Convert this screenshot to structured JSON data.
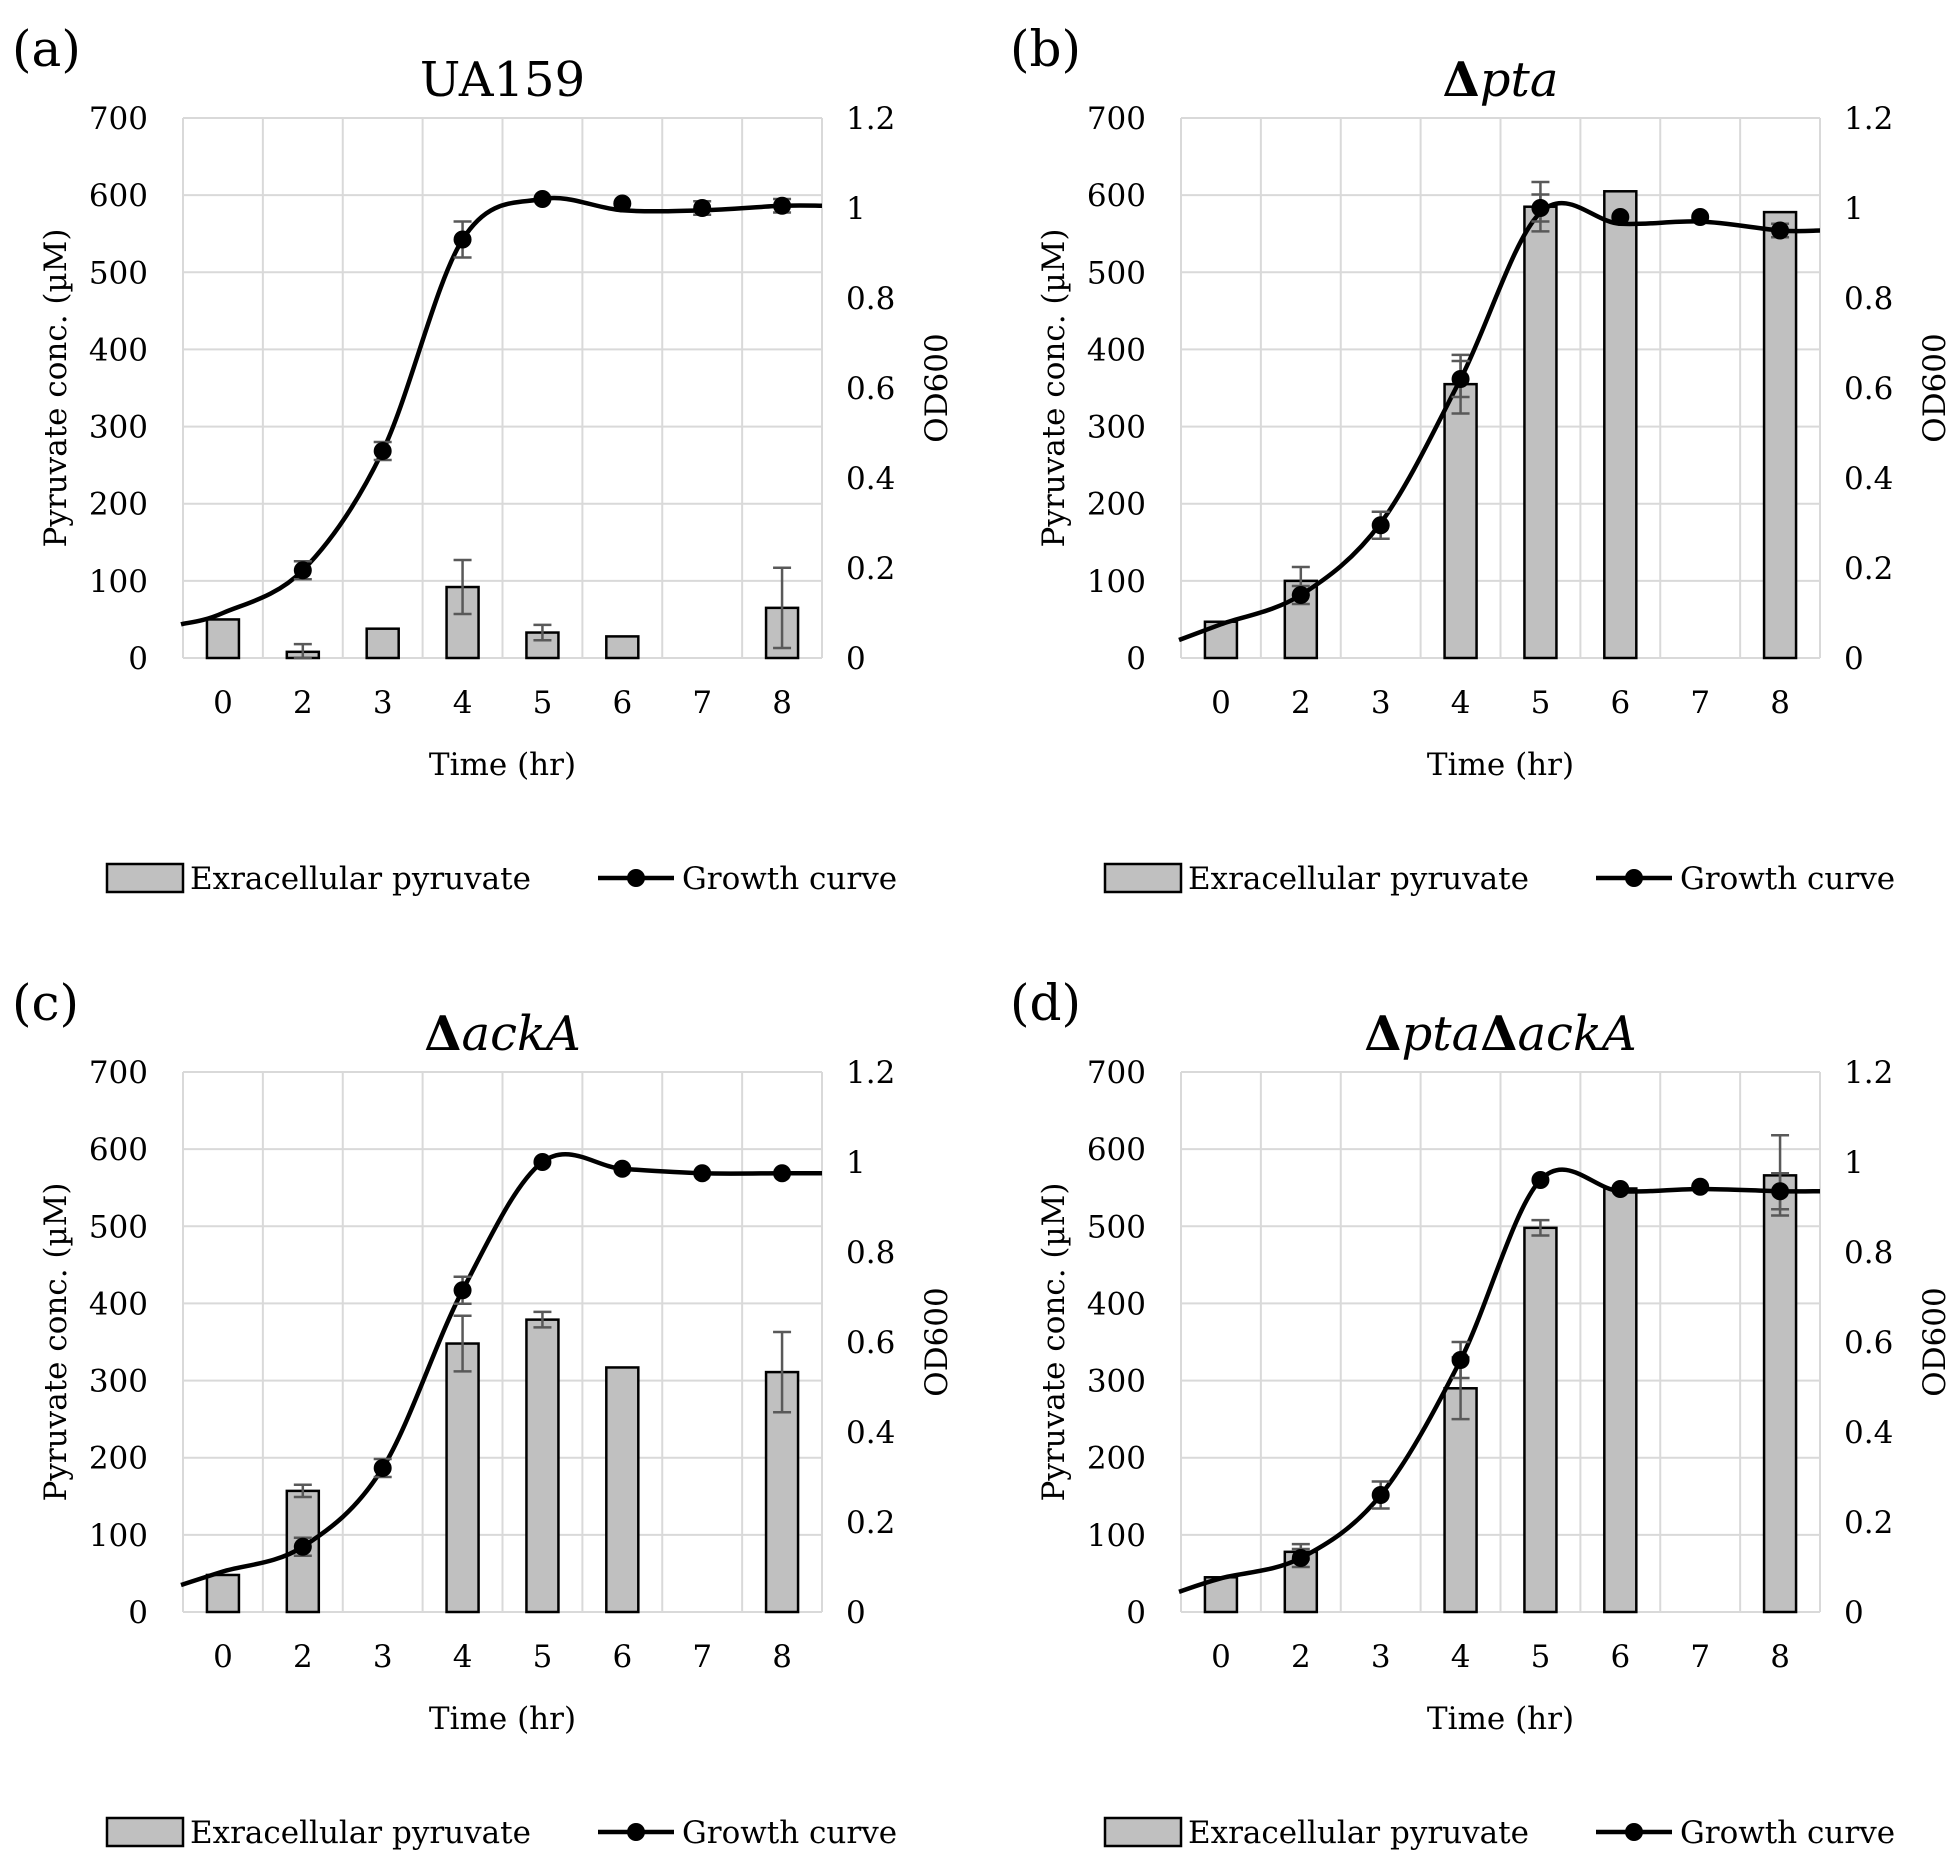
{
  "colors": {
    "bar_fill": "#c0c0c0",
    "bar_stroke": "#000000",
    "line": "#000000",
    "grid": "#d9d9d9",
    "error_bar": "#595959"
  },
  "chart_data": [
    {
      "type": "bar+line",
      "panel_label": "(a)",
      "title_prefix": "",
      "title": "UA159",
      "title_italic": false,
      "categories": [
        "0",
        "2",
        "3",
        "4",
        "5",
        "6",
        "7",
        "8"
      ],
      "xlabel": "Time (hr)",
      "ylabel": "Pyruvate conc. (µM)",
      "y2label": "OD600",
      "ylim": [
        0,
        700
      ],
      "yticks": [
        "0",
        "100",
        "200",
        "300",
        "400",
        "500",
        "600",
        "700"
      ],
      "y2lim": [
        0,
        1.2
      ],
      "y2ticks": [
        "0",
        "0.2",
        "0.4",
        "0.6",
        "0.8",
        "1",
        "1.2"
      ],
      "grid": true,
      "legend_position": "bottom",
      "bar_series": {
        "name": "Exracellular pyruvate",
        "values": [
          50,
          8,
          38,
          92,
          33,
          28,
          null,
          65
        ],
        "errors": [
          0,
          10,
          0,
          35,
          10,
          0,
          0,
          52
        ]
      },
      "line_series": {
        "name": "Growth curve",
        "values": [
          null,
          0.195,
          0.46,
          0.93,
          1.02,
          1.01,
          1.0,
          1.005
        ],
        "errors": [
          0,
          0.02,
          0.02,
          0.04,
          0,
          0,
          0.015,
          0.015
        ],
        "fit_start": 0.075,
        "fit_end": 1.005,
        "fit_knots": [
          0.1,
          0.195,
          0.46,
          0.93,
          1.02,
          0.995,
          0.995,
          1.005
        ]
      }
    },
    {
      "type": "bar+line",
      "panel_label": "(b)",
      "title_prefix": "Δ",
      "title": "pta",
      "title_italic": true,
      "categories": [
        "0",
        "2",
        "3",
        "4",
        "5",
        "6",
        "7",
        "8"
      ],
      "xlabel": "Time (hr)",
      "ylabel": "Pyruvate conc. (µM)",
      "y2label": "OD600",
      "ylim": [
        0,
        700
      ],
      "yticks": [
        "0",
        "100",
        "200",
        "300",
        "400",
        "500",
        "600",
        "700"
      ],
      "y2lim": [
        0,
        1.2
      ],
      "y2ticks": [
        "0",
        "0.2",
        "0.4",
        "0.6",
        "0.8",
        "1",
        "1.2"
      ],
      "grid": true,
      "legend_position": "bottom",
      "bar_series": {
        "name": "Exracellular pyruvate",
        "values": [
          47,
          100,
          null,
          355,
          585,
          605,
          null,
          578
        ],
        "errors": [
          0,
          18,
          0,
          38,
          32,
          0,
          0,
          0
        ]
      },
      "line_series": {
        "name": "Growth curve",
        "values": [
          null,
          0.14,
          0.295,
          0.62,
          1.0,
          0.98,
          0.98,
          0.95
        ],
        "errors": [
          0,
          0.02,
          0.03,
          0.04,
          0.03,
          0,
          0,
          0.015
        ],
        "fit_start": 0.04,
        "fit_end": 0.95,
        "fit_knots": [
          0.075,
          0.14,
          0.3,
          0.62,
          0.99,
          0.965,
          0.97,
          0.95
        ]
      }
    },
    {
      "type": "bar+line",
      "panel_label": "(c)",
      "title_prefix": "Δ",
      "title": "ackA",
      "title_italic": true,
      "categories": [
        "0",
        "2",
        "3",
        "4",
        "5",
        "6",
        "7",
        "8"
      ],
      "xlabel": "Time (hr)",
      "ylabel": "Pyruvate conc. (µM)",
      "y2label": "OD600",
      "ylim": [
        0,
        700
      ],
      "yticks": [
        "0",
        "100",
        "200",
        "300",
        "400",
        "500",
        "600",
        "700"
      ],
      "y2lim": [
        0,
        1.2
      ],
      "y2ticks": [
        "0",
        "0.2",
        "0.4",
        "0.6",
        "0.8",
        "1",
        "1.2"
      ],
      "grid": true,
      "legend_position": "bottom",
      "bar_series": {
        "name": "Exracellular pyruvate",
        "values": [
          48,
          157,
          null,
          348,
          379,
          317,
          null,
          311
        ],
        "errors": [
          0,
          8,
          0,
          36,
          10,
          0,
          0,
          52
        ]
      },
      "line_series": {
        "name": "Growth curve",
        "values": [
          null,
          0.145,
          0.32,
          0.715,
          1.0,
          0.985,
          0.975,
          0.975
        ],
        "errors": [
          0,
          0.02,
          0.02,
          0.03,
          0,
          0,
          0,
          0
        ],
        "fit_start": 0.06,
        "fit_end": 0.975,
        "fit_knots": [
          0.09,
          0.145,
          0.32,
          0.715,
          1.0,
          0.985,
          0.975,
          0.975
        ]
      }
    },
    {
      "type": "bar+line",
      "panel_label": "(d)",
      "title_prefix": "Δ",
      "title": "pta",
      "title_prefix2": "Δ",
      "title2": "ackA",
      "title_italic": true,
      "categories": [
        "0",
        "2",
        "3",
        "4",
        "5",
        "6",
        "7",
        "8"
      ],
      "xlabel": "Time (hr)",
      "ylabel": "Pyruvate conc. (µM)",
      "y2label": "OD600",
      "ylim": [
        0,
        700
      ],
      "yticks": [
        "0",
        "100",
        "200",
        "300",
        "400",
        "500",
        "600",
        "700"
      ],
      "y2lim": [
        0,
        1.2
      ],
      "y2ticks": [
        "0",
        "0.2",
        "0.4",
        "0.6",
        "0.8",
        "1",
        "1.2"
      ],
      "grid": true,
      "legend_position": "bottom",
      "bar_series": {
        "name": "Exracellular pyruvate",
        "values": [
          45,
          78,
          null,
          290,
          498,
          549,
          null,
          566
        ],
        "errors": [
          0,
          10,
          0,
          40,
          10,
          0,
          0,
          52
        ]
      },
      "line_series": {
        "name": "Growth curve",
        "values": [
          null,
          0.12,
          0.26,
          0.56,
          0.96,
          0.94,
          0.945,
          0.935
        ],
        "errors": [
          0,
          0.02,
          0.03,
          0.04,
          0,
          0,
          0,
          0.04
        ],
        "fit_start": 0.045,
        "fit_end": 0.935,
        "fit_knots": [
          0.075,
          0.12,
          0.26,
          0.56,
          0.96,
          0.935,
          0.94,
          0.935
        ]
      }
    }
  ]
}
